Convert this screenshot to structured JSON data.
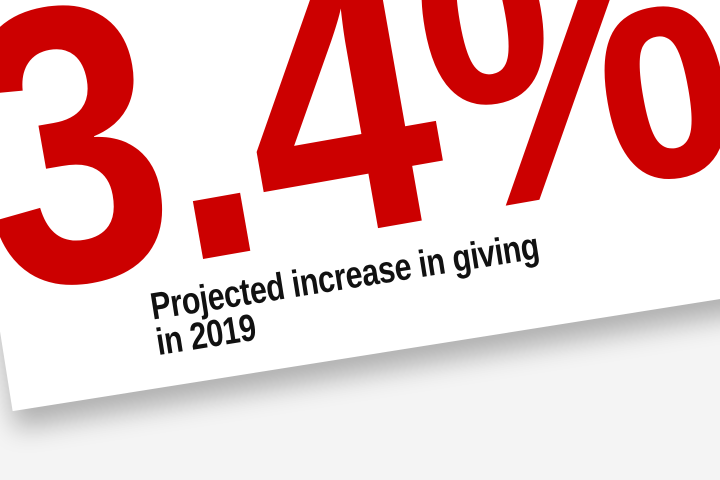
{
  "headline": {
    "value": "3.4%",
    "color": "#cc0000"
  },
  "caption": {
    "text": "Projected increase in giving in 2019"
  }
}
